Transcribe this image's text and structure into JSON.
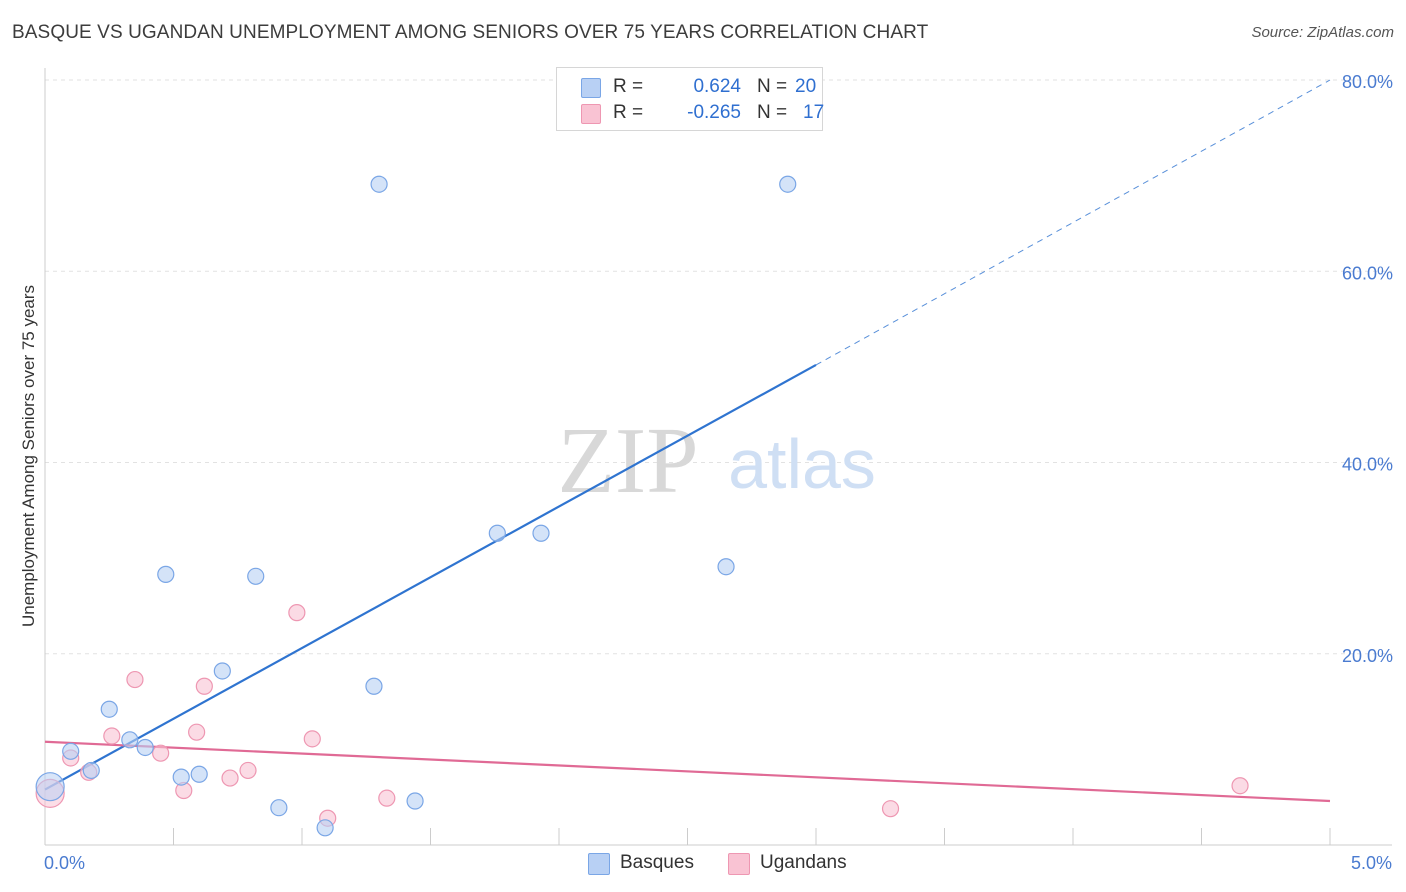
{
  "header": {
    "title": "BASQUE VS UGANDAN UNEMPLOYMENT AMONG SENIORS OVER 75 YEARS CORRELATION CHART",
    "source": "Source: ZipAtlas.com"
  },
  "watermark": {
    "zip": "ZIP",
    "atlas": "atlas"
  },
  "legend": {
    "basques": {
      "r_label": "R =",
      "r_value": "0.624",
      "n_label": "N =",
      "n_value": "20"
    },
    "ugandans": {
      "r_label": "R =",
      "r_value": "-0.265",
      "n_label": "N =",
      "n_value": "17"
    }
  },
  "bottom_legend": {
    "basques": "Basques",
    "ugandans": "Ugandans"
  },
  "colors": {
    "basques_fill": "#b8d0f4",
    "basques_stroke": "#7aa6e6",
    "basques_line": "#2f74d0",
    "ugandans_fill": "#f9c3d3",
    "ugandans_stroke": "#ee97b2",
    "ugandans_line": "#e06a95",
    "grid": "#e2e2e2",
    "axis_label": "#4a7bd0"
  },
  "chart_data": {
    "type": "scatter",
    "title": "BASQUE VS UGANDAN UNEMPLOYMENT AMONG SENIORS OVER 75 YEARS CORRELATION CHART",
    "xlabel": "",
    "ylabel": "Unemployment Among Seniors over 75 years",
    "xlim": [
      0,
      5
    ],
    "ylim": [
      0,
      80
    ],
    "x_tick_labels": [
      "0.0%",
      "5.0%"
    ],
    "y_ticks": [
      20,
      40,
      60,
      80
    ],
    "y_tick_labels": [
      "20.0%",
      "40.0%",
      "60.0%",
      "80.0%"
    ],
    "legend_position": "top-center",
    "series": [
      {
        "name": "Basques",
        "r": 0.624,
        "n": 20,
        "points": [
          {
            "x": 0.02,
            "y": 6.1,
            "big": true
          },
          {
            "x": 0.1,
            "y": 9.8
          },
          {
            "x": 0.18,
            "y": 7.8
          },
          {
            "x": 0.25,
            "y": 14.2
          },
          {
            "x": 0.33,
            "y": 11.0
          },
          {
            "x": 0.39,
            "y": 10.2
          },
          {
            "x": 0.47,
            "y": 28.3
          },
          {
            "x": 0.53,
            "y": 7.1
          },
          {
            "x": 0.6,
            "y": 7.4
          },
          {
            "x": 0.69,
            "y": 18.2
          },
          {
            "x": 0.82,
            "y": 28.1
          },
          {
            "x": 0.91,
            "y": 3.9
          },
          {
            "x": 1.09,
            "y": 1.8
          },
          {
            "x": 1.28,
            "y": 16.6
          },
          {
            "x": 1.3,
            "y": 69.1
          },
          {
            "x": 1.44,
            "y": 4.6
          },
          {
            "x": 1.76,
            "y": 32.6
          },
          {
            "x": 1.93,
            "y": 32.6
          },
          {
            "x": 2.65,
            "y": 29.1
          },
          {
            "x": 2.89,
            "y": 69.1
          }
        ],
        "trend": {
          "x0": 0.0,
          "y0": 5.8,
          "x1": 3.0,
          "y1": 50.2,
          "dash_to_x": 5.0,
          "dash_to_y": 80.0
        }
      },
      {
        "name": "Ugandans",
        "r": -0.265,
        "n": 17,
        "points": [
          {
            "x": 0.02,
            "y": 5.4,
            "big": true
          },
          {
            "x": 0.1,
            "y": 9.1
          },
          {
            "x": 0.17,
            "y": 7.6
          },
          {
            "x": 0.26,
            "y": 11.4
          },
          {
            "x": 0.35,
            "y": 17.3
          },
          {
            "x": 0.45,
            "y": 9.6
          },
          {
            "x": 0.54,
            "y": 5.7
          },
          {
            "x": 0.59,
            "y": 11.8
          },
          {
            "x": 0.62,
            "y": 16.6
          },
          {
            "x": 0.72,
            "y": 7.0
          },
          {
            "x": 0.79,
            "y": 7.8
          },
          {
            "x": 0.98,
            "y": 24.3
          },
          {
            "x": 1.04,
            "y": 11.1
          },
          {
            "x": 1.1,
            "y": 2.8
          },
          {
            "x": 1.33,
            "y": 4.9
          },
          {
            "x": 3.29,
            "y": 3.8
          },
          {
            "x": 4.65,
            "y": 6.2
          }
        ],
        "trend": {
          "x0": 0.0,
          "y0": 10.8,
          "x1": 5.0,
          "y1": 4.6
        }
      }
    ]
  }
}
